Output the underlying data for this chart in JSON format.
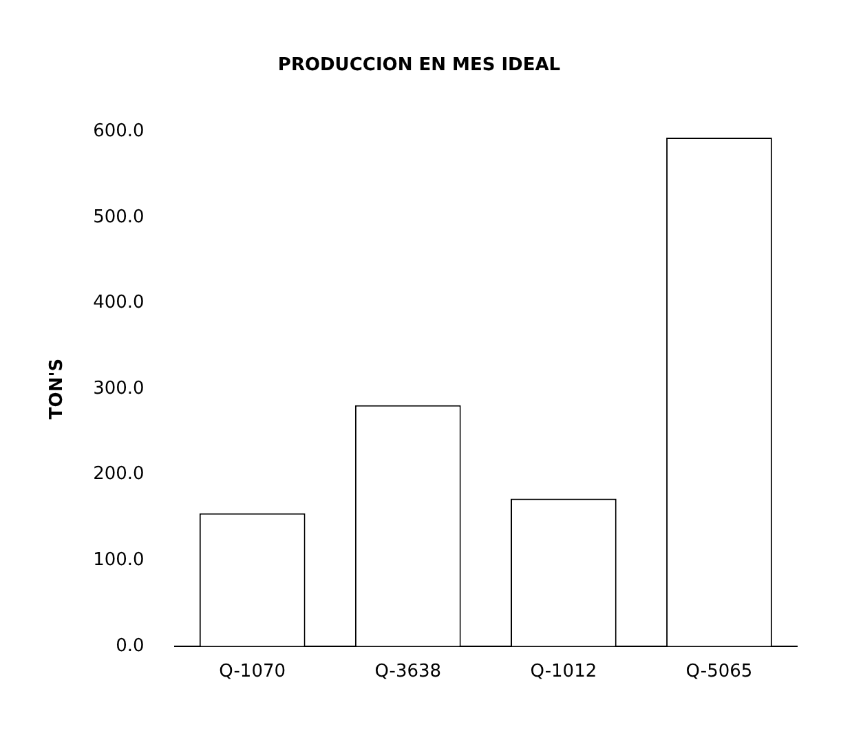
{
  "chart_data": {
    "type": "bar",
    "title": "PRODUCCION EN MES IDEAL",
    "ylabel": "TON'S",
    "categories": [
      "Q-1070",
      "Q-3638",
      "Q-1012",
      "Q-5065"
    ],
    "values": [
      155,
      281,
      172,
      593
    ],
    "color": "#ffffff",
    "ylim": [
      0,
      600
    ],
    "yticks": [
      {
        "value": 0,
        "label": "0.0"
      },
      {
        "value": 100,
        "label": "100.0"
      },
      {
        "value": 200,
        "label": "200.0"
      },
      {
        "value": 300,
        "label": "300.0"
      },
      {
        "value": 400,
        "label": "400.0"
      },
      {
        "value": 500,
        "label": "500.0"
      },
      {
        "value": 600,
        "label": "600.0"
      }
    ],
    "grid": false,
    "legend": false
  }
}
